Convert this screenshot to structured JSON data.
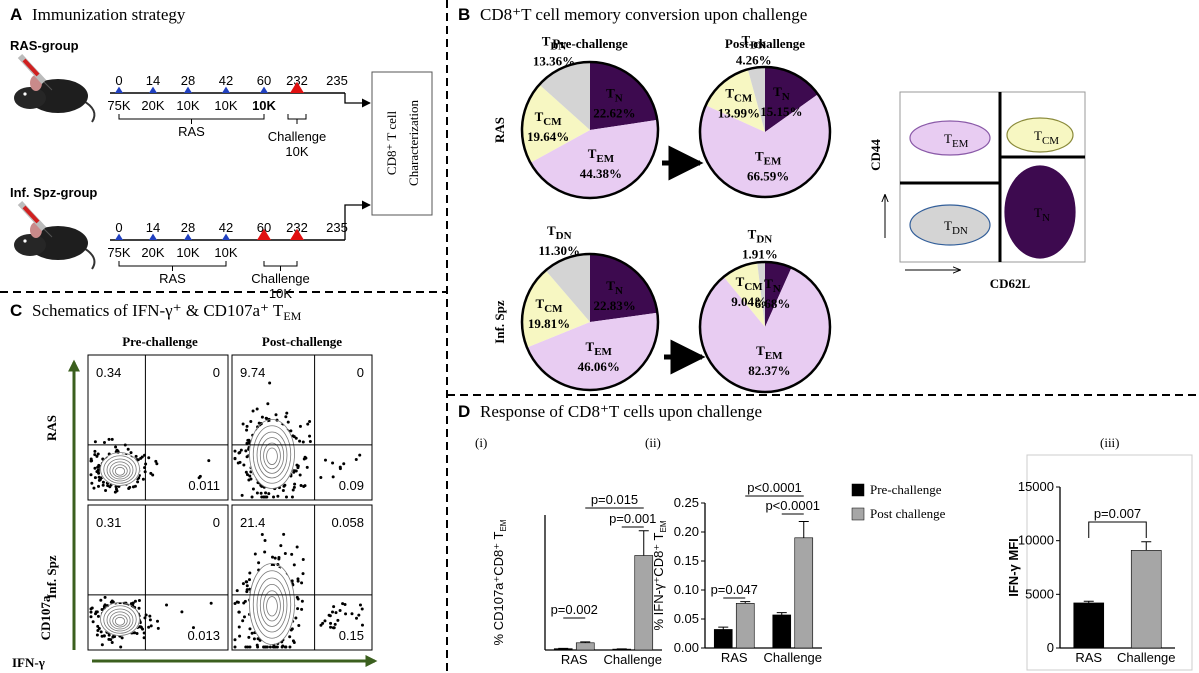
{
  "figure": {
    "a": {
      "label": "A",
      "title": "Immunization strategy",
      "groups": [
        {
          "name": "RAS-group",
          "days": [
            "0",
            "14",
            "28",
            "42",
            "60",
            "232",
            "235"
          ],
          "doses": [
            "75K",
            "20K",
            "10K",
            "10K",
            "10K"
          ],
          "schedule": "RAS",
          "challenge": "Challenge",
          "challenge_dose": "10K"
        },
        {
          "name": "Inf. Spz-group",
          "days": [
            "0",
            "14",
            "28",
            "42",
            "60",
            "232",
            "235"
          ],
          "doses": [
            "75K",
            "20K",
            "10K",
            "10K"
          ],
          "schedule": "RAS",
          "challenge": "Challenge",
          "challenge_dose": "10K"
        }
      ],
      "readout": [
        "CD8⁺ T cell",
        "Characterization"
      ]
    },
    "b": {
      "label": "B",
      "title": "CD8⁺T cell memory conversion upon challenge",
      "columns": [
        "Pre-challenge",
        "Post-challenge"
      ],
      "rows": [
        "RAS",
        "Inf. Spz"
      ],
      "schematic": {
        "y_axis": "CD44",
        "x_axis": "CD62L",
        "populations": [
          {
            "base": "T",
            "sub": "EM"
          },
          {
            "base": "T",
            "sub": "CM"
          },
          {
            "base": "T",
            "sub": "DN"
          },
          {
            "base": "T",
            "sub": "N"
          }
        ]
      }
    },
    "c": {
      "label": "C",
      "title": {
        "base": "Schematics of IFN-γ⁺ & CD107a⁺ T",
        "sub": "EM"
      },
      "columns": [
        "Pre-challenge",
        "Post-challenge"
      ],
      "rows": [
        "RAS",
        "Inf. Spz"
      ],
      "y_axis": "CD107a",
      "x_axis": "IFN-γ",
      "plots": [
        {
          "upper_left": "0.34",
          "upper_right": "0",
          "lower_right": "0.011"
        },
        {
          "upper_left": "9.74",
          "upper_right": "0",
          "lower_right": "0.09"
        },
        {
          "upper_left": "0.31",
          "upper_right": "0",
          "lower_right": "0.013"
        },
        {
          "upper_left": "21.4",
          "upper_right": "0.058",
          "lower_right": "0.15"
        }
      ]
    },
    "d": {
      "label": "D",
      "title": "Response of CD8⁺T cells upon challenge"
    }
  },
  "chart_data": [
    {
      "type": "pie",
      "categories": [
        {
          "base": "T",
          "sub": "N"
        },
        {
          "base": "T",
          "sub": "EM"
        },
        {
          "base": "T",
          "sub": "CM"
        },
        {
          "base": "T",
          "sub": "DN"
        }
      ],
      "values": [
        22.62,
        44.38,
        19.64,
        13.36
      ],
      "value_labels": [
        "22.62%",
        "44.38%",
        "19.64%",
        "13.36%"
      ],
      "colors": [
        "#3d0a4f",
        "#e8ccf2",
        "#f7f7c2",
        "#d4d4d4"
      ]
    },
    {
      "type": "pie",
      "categories": [
        {
          "base": "T",
          "sub": "N"
        },
        {
          "base": "T",
          "sub": "EM"
        },
        {
          "base": "T",
          "sub": "CM"
        },
        {
          "base": "T",
          "sub": "DN"
        }
      ],
      "values": [
        15.15,
        66.59,
        13.99,
        4.26
      ],
      "value_labels": [
        "15.15%",
        "66.59%",
        "13.99%",
        "4.26%"
      ],
      "colors": [
        "#3d0a4f",
        "#e8ccf2",
        "#f7f7c2",
        "#d4d4d4"
      ]
    },
    {
      "type": "pie",
      "categories": [
        {
          "base": "T",
          "sub": "N"
        },
        {
          "base": "T",
          "sub": "EM"
        },
        {
          "base": "T",
          "sub": "CM"
        },
        {
          "base": "T",
          "sub": "DN"
        }
      ],
      "values": [
        22.83,
        46.06,
        19.81,
        11.3
      ],
      "value_labels": [
        "22.83%",
        "46.06%",
        "19.81%",
        "11.30%"
      ],
      "colors": [
        "#3d0a4f",
        "#e8ccf2",
        "#f7f7c2",
        "#d4d4d4"
      ]
    },
    {
      "type": "pie",
      "categories": [
        {
          "base": "T",
          "sub": "N"
        },
        {
          "base": "T",
          "sub": "EM"
        },
        {
          "base": "T",
          "sub": "CM"
        },
        {
          "base": "T",
          "sub": "DN"
        }
      ],
      "values": [
        6.68,
        82.37,
        9.04,
        1.91
      ],
      "value_labels": [
        "6.68%",
        "82.37%",
        "9.04%",
        "1.91%"
      ],
      "colors": [
        "#3d0a4f",
        "#e8ccf2",
        "#f7f7c2",
        "#d4d4d4"
      ]
    },
    {
      "type": "bar",
      "label": "(i)",
      "ylabel": {
        "base": "% CD107a⁺CD8⁺ T",
        "sub": "EM"
      },
      "categories": [
        "RAS",
        "Challenge"
      ],
      "series": [
        {
          "color": "#000000",
          "values": [
            0.3,
            0.2
          ],
          "errors": [
            0.05,
            0.05
          ]
        },
        {
          "color": "#a6a6a6",
          "values": [
            1.6,
            21
          ],
          "errors": [
            0.2,
            5.5
          ]
        }
      ],
      "ylim": [
        0,
        30
      ],
      "annotations": [
        "p=0.002",
        "p=0.015",
        "p=0.001"
      ]
    },
    {
      "type": "bar",
      "label": "(ii)",
      "ylabel": {
        "base": "% IFN-γ⁺CD8⁺ T",
        "sub": "EM"
      },
      "categories": [
        "RAS",
        "Challenge"
      ],
      "series": [
        {
          "name": "Pre-challenge",
          "color": "#000000",
          "values": [
            0.032,
            0.057
          ],
          "errors": [
            0.004,
            0.004
          ]
        },
        {
          "name": "Post challenge",
          "color": "#a6a6a6",
          "values": [
            0.077,
            0.19
          ],
          "errors": [
            0.003,
            0.028
          ]
        }
      ],
      "ylim": [
        0,
        0.25
      ],
      "yticks": [
        {
          "value": 0,
          "label": "0.00"
        },
        {
          "value": 0.05,
          "label": "0.05"
        },
        {
          "value": 0.1,
          "label": "0.10"
        },
        {
          "value": 0.15,
          "label": "0.15"
        },
        {
          "value": 0.2,
          "label": "0.20"
        },
        {
          "value": 0.25,
          "label": "0.25"
        }
      ],
      "annotations": [
        "p=0.047",
        "p<0.0001",
        "p<0.0001"
      ]
    },
    {
      "type": "bar",
      "label": "(iii)",
      "ylabel": "IFN-γ MFI",
      "categories": [
        "RAS",
        "Challenge"
      ],
      "values": [
        4200,
        9100
      ],
      "errors": [
        150,
        800
      ],
      "colors": [
        "#000000",
        "#a6a6a6"
      ],
      "ylim": [
        0,
        15000
      ],
      "yticks": [
        0,
        5000,
        10000,
        15000
      ],
      "annotations": [
        "p=0.007"
      ]
    }
  ]
}
